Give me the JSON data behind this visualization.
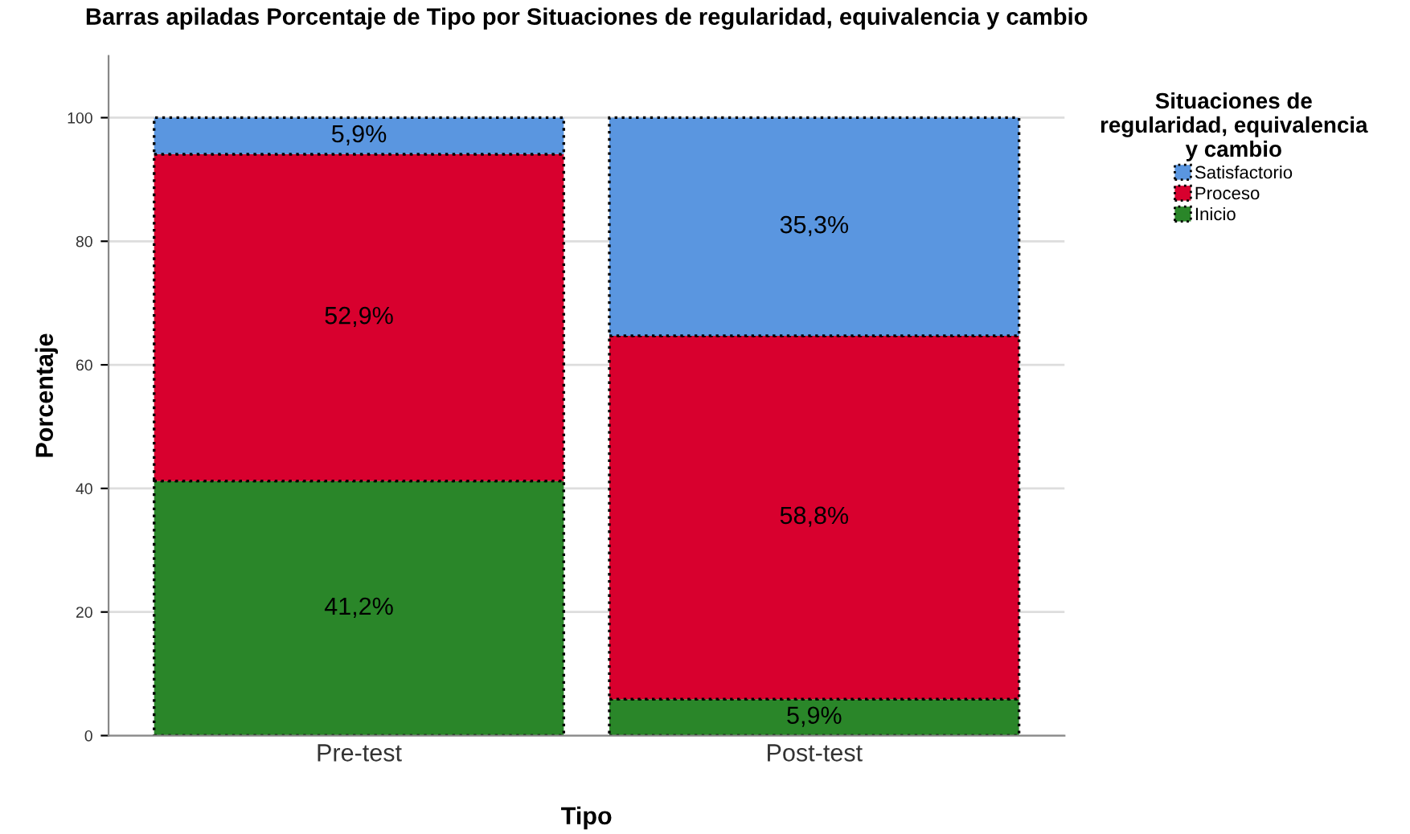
{
  "chart_data": {
    "type": "bar",
    "stacked": true,
    "title": "Barras apiladas Porcentaje de Tipo por Situaciones de regularidad, equivalencia y cambio",
    "xlabel": "Tipo",
    "ylabel": "Porcentaje",
    "legend_title": "Situaciones de\nregularidad, equivalencia\ny cambio",
    "categories": [
      "Pre-test",
      "Post-test"
    ],
    "series": [
      {
        "name": "Inicio",
        "color": "#2a8629",
        "values": [
          41.2,
          5.9
        ],
        "value_labels": [
          "41,2%",
          "5,9%"
        ]
      },
      {
        "name": "Proceso",
        "color": "#d8002e",
        "values": [
          52.9,
          58.8
        ],
        "value_labels": [
          "52,9%",
          "58,8%"
        ]
      },
      {
        "name": "Satisfactorio",
        "color": "#5a96e0",
        "values": [
          5.9,
          35.3
        ],
        "value_labels": [
          "5,9%",
          "35,3%"
        ]
      }
    ],
    "ylim": [
      0,
      110
    ],
    "yticks": [
      0,
      20,
      40,
      60,
      80,
      100
    ],
    "grid": "y",
    "legend": "top right"
  }
}
